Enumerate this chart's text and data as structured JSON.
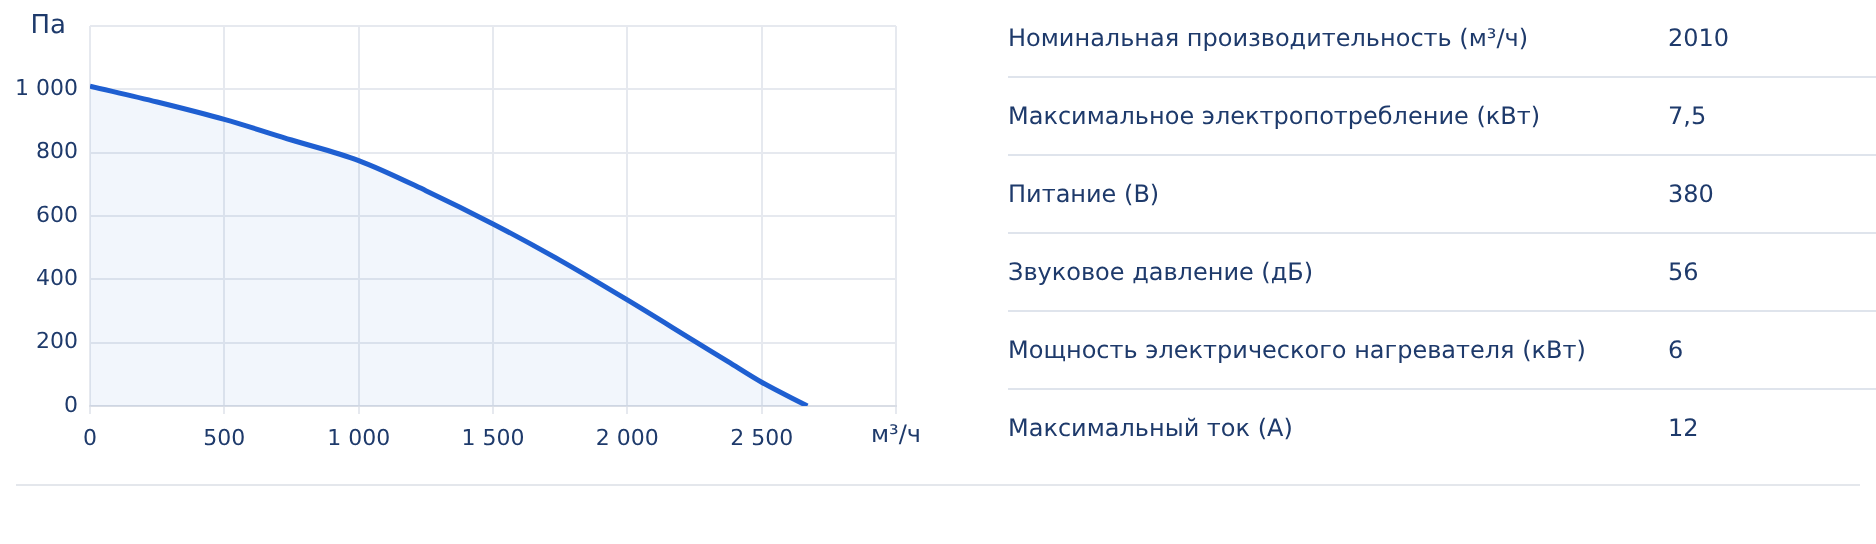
{
  "chart_data": [
    {
      "type": "area",
      "ylabel": "Па",
      "xlabel": "м³/ч",
      "x": [
        0,
        250,
        500,
        750,
        1000,
        1250,
        1500,
        1750,
        2000,
        2250,
        2375,
        2500,
        2670
      ],
      "series": [
        {
          "color": "#1f5fd1",
          "values": [
            1010,
            960,
            905,
            840,
            775,
            680,
            575,
            460,
            335,
            205,
            140,
            75,
            0
          ]
        }
      ],
      "xlim": [
        0,
        3000
      ],
      "xticks": [
        0,
        500,
        {
          "value": 1000,
          "label": "1 000"
        },
        {
          "value": 1500,
          "label": "1 500"
        },
        {
          "value": 2000,
          "label": "2 000"
        },
        {
          "value": 2500,
          "label": "2 500"
        },
        {
          "value": 3000,
          "label": null
        }
      ],
      "ylim": [
        0,
        1200
      ],
      "yticks": [
        0,
        200,
        400,
        600,
        800,
        {
          "value": 1000,
          "label": "1 000"
        },
        {
          "value": 1200,
          "label": null
        }
      ],
      "grid": true,
      "legend": false,
      "marker": "none",
      "line_style": "solid"
    },
    {
      "type": "other",
      "annotations": [
        "Номинальная производительность (м³/ч)",
        "2010",
        "Максимальное электропотребление (кВт)",
        "7,5",
        "Питание (В)",
        "380",
        "Звуковое давление (дБ)",
        "56",
        "Мощность электрического нагревателя (кВт)",
        "6",
        "Максимальный ток (А)",
        "12"
      ]
    }
  ]
}
